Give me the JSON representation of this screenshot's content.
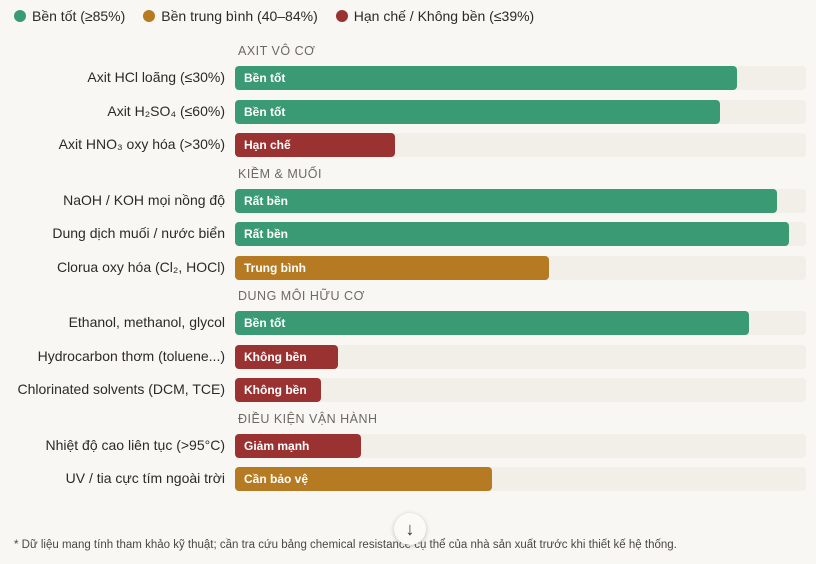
{
  "colors": {
    "good": "#3a9a74",
    "medium": "#b57a22",
    "poor": "#9b3232"
  },
  "legend": [
    {
      "label": "Bền tốt (≥85%)",
      "level": "good"
    },
    {
      "label": "Bền trung bình (40–84%)",
      "level": "medium"
    },
    {
      "label": "Hạn chế / Không bền (≤39%)",
      "level": "poor"
    }
  ],
  "chart_data": {
    "type": "bar",
    "orientation": "horizontal",
    "xlim": [
      0,
      100
    ],
    "groups": [
      {
        "name": "AXIT VÔ CƠ",
        "items": [
          {
            "label": "Axit HCl loãng (≤30%)",
            "value": 88,
            "level": "good",
            "tag": "Bền tốt"
          },
          {
            "label": "Axit H₂SO₄ (≤60%)",
            "value": 85,
            "level": "good",
            "tag": "Bền tốt"
          },
          {
            "label": "Axit HNO₃ oxy hóa (>30%)",
            "value": 28,
            "level": "poor",
            "tag": "Hạn chế"
          }
        ]
      },
      {
        "name": "KIỀM & MUỐI",
        "items": [
          {
            "label": "NaOH / KOH mọi nồng độ",
            "value": 95,
            "level": "good",
            "tag": "Rất bền"
          },
          {
            "label": "Dung dịch muối / nước biển",
            "value": 97,
            "level": "good",
            "tag": "Rất bền"
          },
          {
            "label": "Clorua oxy hóa (Cl₂, HOCl)",
            "value": 55,
            "level": "medium",
            "tag": "Trung bình"
          }
        ]
      },
      {
        "name": "DUNG MÔI HỮU CƠ",
        "items": [
          {
            "label": "Ethanol, methanol, glycol",
            "value": 90,
            "level": "good",
            "tag": "Bền tốt"
          },
          {
            "label": "Hydrocarbon thơm (toluene...)",
            "value": 18,
            "level": "poor",
            "tag": "Không bền"
          },
          {
            "label": "Chlorinated solvents (DCM, TCE)",
            "value": 15,
            "level": "poor",
            "tag": "Không bền"
          }
        ]
      },
      {
        "name": "ĐIỀU KIỆN VẬN HÀNH",
        "items": [
          {
            "label": "Nhiệt độ cao liên tục (>95°C)",
            "value": 22,
            "level": "poor",
            "tag": "Giảm mạnh"
          },
          {
            "label": "UV / tia cực tím ngoài trời",
            "value": 45,
            "level": "medium",
            "tag": "Cần bảo vệ"
          }
        ]
      }
    ]
  },
  "footnote": "* Dữ liệu mang tính tham khảo kỹ thuật; cần tra cứu bảng chemical resistance cụ thể của nhà sản xuất trước khi thiết kế hệ thống.",
  "scroll_icon": "↓"
}
